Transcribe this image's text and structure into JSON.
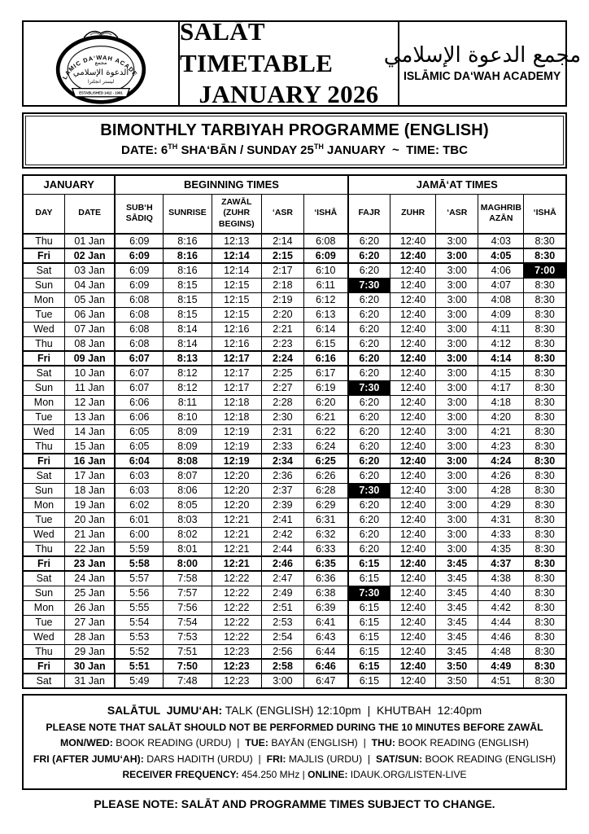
{
  "header": {
    "title_line1": "SALĀT TIMETABLE",
    "title_line2": "JANUARY 2026",
    "arabic_name": "مجمع الدعوة الإسلامي",
    "org_name": "ISLĀMIC DA‘WAH ACADEMY",
    "logo": {
      "arc_text": "ISLAMIC DA‘WAH ACADEMY",
      "arabic_small": "مجمع",
      "arabic_main": "الدعوة الإسلامي",
      "arabic_city": "ليستر انجلترا",
      "banner_text": "ESTABLISHED 1412 - 1991"
    }
  },
  "programme": {
    "title": "BIMONTHLY TARBIYAH PROGRAMME (ENGLISH)",
    "date_parts": {
      "pre": "DATE: 6",
      "sup1": "TH",
      "mid": " SHA‘BĀN / SUNDAY 25",
      "sup2": "TH",
      "post": " JANUARY  ~  TIME: TBC"
    }
  },
  "table": {
    "groups": [
      "JANUARY",
      "BEGINNING TIMES",
      "JAMĀ‘AT TIMES"
    ],
    "columns": [
      "DAY",
      "DATE",
      "SUB‘H\nSĀDIQ",
      "SUNRISE",
      "ZAWĀL\n(ZUHR\nBEGINS)",
      "‘ASR",
      "‘ISHĀ",
      "FAJR",
      "ZUHR",
      "‘ASR",
      "MAGHRIB\nAZĀN",
      "‘ISHĀ"
    ],
    "rows": [
      {
        "day": "Thu",
        "date": "01 Jan",
        "bold": false,
        "cells": [
          "6:09",
          "8:16",
          "12:13",
          "2:14",
          "6:08",
          "6:20",
          "12:40",
          "3:00",
          "4:03",
          "8:30"
        ],
        "hl": []
      },
      {
        "day": "Fri",
        "date": "02 Jan",
        "bold": true,
        "cells": [
          "6:09",
          "8:16",
          "12:14",
          "2:15",
          "6:09",
          "6:20",
          "12:40",
          "3:00",
          "4:05",
          "8:30"
        ],
        "hl": []
      },
      {
        "day": "Sat",
        "date": "03 Jan",
        "bold": false,
        "cells": [
          "6:09",
          "8:16",
          "12:14",
          "2:17",
          "6:10",
          "6:20",
          "12:40",
          "3:00",
          "4:06",
          "7:00"
        ],
        "hl": [
          9
        ]
      },
      {
        "day": "Sun",
        "date": "04 Jan",
        "bold": false,
        "cells": [
          "6:09",
          "8:15",
          "12:15",
          "2:18",
          "6:11",
          "7:30",
          "12:40",
          "3:00",
          "4:07",
          "8:30"
        ],
        "hl": [
          5
        ]
      },
      {
        "day": "Mon",
        "date": "05 Jan",
        "bold": false,
        "cells": [
          "6:08",
          "8:15",
          "12:15",
          "2:19",
          "6:12",
          "6:20",
          "12:40",
          "3:00",
          "4:08",
          "8:30"
        ],
        "hl": []
      },
      {
        "day": "Tue",
        "date": "06 Jan",
        "bold": false,
        "cells": [
          "6:08",
          "8:15",
          "12:15",
          "2:20",
          "6:13",
          "6:20",
          "12:40",
          "3:00",
          "4:09",
          "8:30"
        ],
        "hl": []
      },
      {
        "day": "Wed",
        "date": "07 Jan",
        "bold": false,
        "cells": [
          "6:08",
          "8:14",
          "12:16",
          "2:21",
          "6:14",
          "6:20",
          "12:40",
          "3:00",
          "4:11",
          "8:30"
        ],
        "hl": []
      },
      {
        "day": "Thu",
        "date": "08 Jan",
        "bold": false,
        "cells": [
          "6:08",
          "8:14",
          "12:16",
          "2:23",
          "6:15",
          "6:20",
          "12:40",
          "3:00",
          "4:12",
          "8:30"
        ],
        "hl": []
      },
      {
        "day": "Fri",
        "date": "09 Jan",
        "bold": true,
        "cells": [
          "6:07",
          "8:13",
          "12:17",
          "2:24",
          "6:16",
          "6:20",
          "12:40",
          "3:00",
          "4:14",
          "8:30"
        ],
        "hl": []
      },
      {
        "day": "Sat",
        "date": "10 Jan",
        "bold": false,
        "cells": [
          "6:07",
          "8:12",
          "12:17",
          "2:25",
          "6:17",
          "6:20",
          "12:40",
          "3:00",
          "4:15",
          "8:30"
        ],
        "hl": []
      },
      {
        "day": "Sun",
        "date": "11 Jan",
        "bold": false,
        "cells": [
          "6:07",
          "8:12",
          "12:17",
          "2:27",
          "6:19",
          "7:30",
          "12:40",
          "3:00",
          "4:17",
          "8:30"
        ],
        "hl": [
          5
        ]
      },
      {
        "day": "Mon",
        "date": "12 Jan",
        "bold": false,
        "cells": [
          "6:06",
          "8:11",
          "12:18",
          "2:28",
          "6:20",
          "6:20",
          "12:40",
          "3:00",
          "4:18",
          "8:30"
        ],
        "hl": []
      },
      {
        "day": "Tue",
        "date": "13 Jan",
        "bold": false,
        "cells": [
          "6:06",
          "8:10",
          "12:18",
          "2:30",
          "6:21",
          "6:20",
          "12:40",
          "3:00",
          "4:20",
          "8:30"
        ],
        "hl": []
      },
      {
        "day": "Wed",
        "date": "14 Jan",
        "bold": false,
        "cells": [
          "6:05",
          "8:09",
          "12:19",
          "2:31",
          "6:22",
          "6:20",
          "12:40",
          "3:00",
          "4:21",
          "8:30"
        ],
        "hl": []
      },
      {
        "day": "Thu",
        "date": "15 Jan",
        "bold": false,
        "cells": [
          "6:05",
          "8:09",
          "12:19",
          "2:33",
          "6:24",
          "6:20",
          "12:40",
          "3:00",
          "4:23",
          "8:30"
        ],
        "hl": []
      },
      {
        "day": "Fri",
        "date": "16 Jan",
        "bold": true,
        "cells": [
          "6:04",
          "8:08",
          "12:19",
          "2:34",
          "6:25",
          "6:20",
          "12:40",
          "3:00",
          "4:24",
          "8:30"
        ],
        "hl": []
      },
      {
        "day": "Sat",
        "date": "17 Jan",
        "bold": false,
        "cells": [
          "6:03",
          "8:07",
          "12:20",
          "2:36",
          "6:26",
          "6:20",
          "12:40",
          "3:00",
          "4:26",
          "8:30"
        ],
        "hl": []
      },
      {
        "day": "Sun",
        "date": "18 Jan",
        "bold": false,
        "cells": [
          "6:03",
          "8:06",
          "12:20",
          "2:37",
          "6:28",
          "7:30",
          "12:40",
          "3:00",
          "4:28",
          "8:30"
        ],
        "hl": [
          5
        ]
      },
      {
        "day": "Mon",
        "date": "19 Jan",
        "bold": false,
        "cells": [
          "6:02",
          "8:05",
          "12:20",
          "2:39",
          "6:29",
          "6:20",
          "12:40",
          "3:00",
          "4:29",
          "8:30"
        ],
        "hl": []
      },
      {
        "day": "Tue",
        "date": "20 Jan",
        "bold": false,
        "cells": [
          "6:01",
          "8:03",
          "12:21",
          "2:41",
          "6:31",
          "6:20",
          "12:40",
          "3:00",
          "4:31",
          "8:30"
        ],
        "hl": []
      },
      {
        "day": "Wed",
        "date": "21 Jan",
        "bold": false,
        "cells": [
          "6:00",
          "8:02",
          "12:21",
          "2:42",
          "6:32",
          "6:20",
          "12:40",
          "3:00",
          "4:33",
          "8:30"
        ],
        "hl": []
      },
      {
        "day": "Thu",
        "date": "22 Jan",
        "bold": false,
        "cells": [
          "5:59",
          "8:01",
          "12:21",
          "2:44",
          "6:33",
          "6:20",
          "12:40",
          "3:00",
          "4:35",
          "8:30"
        ],
        "hl": []
      },
      {
        "day": "Fri",
        "date": "23 Jan",
        "bold": true,
        "cells": [
          "5:58",
          "8:00",
          "12:21",
          "2:46",
          "6:35",
          "6:15",
          "12:40",
          "3:45",
          "4:37",
          "8:30"
        ],
        "hl": []
      },
      {
        "day": "Sat",
        "date": "24 Jan",
        "bold": false,
        "cells": [
          "5:57",
          "7:58",
          "12:22",
          "2:47",
          "6:36",
          "6:15",
          "12:40",
          "3:45",
          "4:38",
          "8:30"
        ],
        "hl": []
      },
      {
        "day": "Sun",
        "date": "25 Jan",
        "bold": false,
        "cells": [
          "5:56",
          "7:57",
          "12:22",
          "2:49",
          "6:38",
          "7:30",
          "12:40",
          "3:45",
          "4:40",
          "8:30"
        ],
        "hl": [
          5
        ]
      },
      {
        "day": "Mon",
        "date": "26 Jan",
        "bold": false,
        "cells": [
          "5:55",
          "7:56",
          "12:22",
          "2:51",
          "6:39",
          "6:15",
          "12:40",
          "3:45",
          "4:42",
          "8:30"
        ],
        "hl": []
      },
      {
        "day": "Tue",
        "date": "27 Jan",
        "bold": false,
        "cells": [
          "5:54",
          "7:54",
          "12:22",
          "2:53",
          "6:41",
          "6:15",
          "12:40",
          "3:45",
          "4:44",
          "8:30"
        ],
        "hl": []
      },
      {
        "day": "Wed",
        "date": "28 Jan",
        "bold": false,
        "cells": [
          "5:53",
          "7:53",
          "12:22",
          "2:54",
          "6:43",
          "6:15",
          "12:40",
          "3:45",
          "4:46",
          "8:30"
        ],
        "hl": []
      },
      {
        "day": "Thu",
        "date": "29 Jan",
        "bold": false,
        "cells": [
          "5:52",
          "7:51",
          "12:23",
          "2:56",
          "6:44",
          "6:15",
          "12:40",
          "3:45",
          "4:48",
          "8:30"
        ],
        "hl": []
      },
      {
        "day": "Fri",
        "date": "30 Jan",
        "bold": true,
        "cells": [
          "5:51",
          "7:50",
          "12:23",
          "2:58",
          "6:46",
          "6:15",
          "12:40",
          "3:50",
          "4:49",
          "8:30"
        ],
        "hl": []
      },
      {
        "day": "Sat",
        "date": "31 Jan",
        "bold": false,
        "cells": [
          "5:49",
          "7:48",
          "12:23",
          "3:00",
          "6:47",
          "6:15",
          "12:40",
          "3:50",
          "4:51",
          "8:30"
        ],
        "hl": []
      }
    ]
  },
  "notes": {
    "lines": [
      [
        {
          "t": "SALĀTUL  JUMU‘AH:",
          "b": true
        },
        {
          "t": " TALK (ENGLISH) 12:10pm  |  KHUTBAH  12:40pm",
          "b": false
        }
      ],
      [
        {
          "t": "PLEASE NOTE THAT SALĀT SHOULD NOT BE PERFORMED DURING THE 10 MINUTES BEFORE ZAWĀL",
          "b": true
        }
      ],
      [
        {
          "t": "MON/WED:",
          "b": true
        },
        {
          "t": " BOOK READING (URDU)  |  ",
          "b": false
        },
        {
          "t": "TUE:",
          "b": true
        },
        {
          "t": " BAYĀN (ENGLISH)  |  ",
          "b": false
        },
        {
          "t": "THU:",
          "b": true
        },
        {
          "t": " BOOK READING (ENGLISH)",
          "b": false
        }
      ],
      [
        {
          "t": "FRI (AFTER JUMU‘AH):",
          "b": true
        },
        {
          "t": " DARS HADITH (URDU)  |  ",
          "b": false
        },
        {
          "t": "FRI:",
          "b": true
        },
        {
          "t": " MAJLIS (URDU)  |  ",
          "b": false
        },
        {
          "t": "SAT/SUN:",
          "b": true
        },
        {
          "t": " BOOK READING (ENGLISH)",
          "b": false
        }
      ],
      [
        {
          "t": "RECEIVER FREQUENCY:",
          "b": true
        },
        {
          "t": " 454.250 MHz | ",
          "b": false
        },
        {
          "t": "ONLINE:",
          "b": true
        },
        {
          "t": " IDAUK.ORG/LISTEN-LIVE",
          "b": false
        }
      ]
    ]
  },
  "bottom_note": "PLEASE NOTE: SALĀT AND PROGRAMME TIMES SUBJECT TO CHANGE.",
  "colors": {
    "ink": "#000000",
    "paper": "#ffffff",
    "highlight_bg": "#000000",
    "highlight_text": "#ffffff"
  }
}
